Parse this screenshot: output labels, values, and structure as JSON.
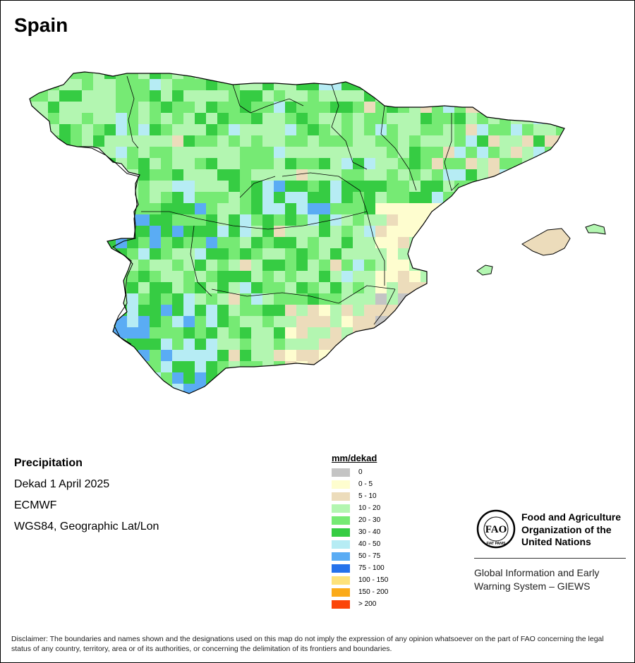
{
  "map": {
    "title": "Spain",
    "info": {
      "title": "Precipitation",
      "dekad": "Dekad 1 April 2025",
      "model": "ECMWF",
      "projection": "WGS84, Geographic Lat/Lon"
    }
  },
  "legend": {
    "title": "mm/dekad",
    "items": [
      {
        "label": "0",
        "color": "#c4c4c4"
      },
      {
        "label": "0 - 5",
        "color": "#fefdcf"
      },
      {
        "label": "5 - 10",
        "color": "#ecdcbb"
      },
      {
        "label": "10 - 20",
        "color": "#b3f6b1"
      },
      {
        "label": "20 - 30",
        "color": "#76ea74"
      },
      {
        "label": "30 - 40",
        "color": "#36cc43"
      },
      {
        "label": "40 - 50",
        "color": "#b6ecf4"
      },
      {
        "label": "50 - 75",
        "color": "#5aacf4"
      },
      {
        "label": "75 - 100",
        "color": "#2572eb"
      },
      {
        "label": "100 - 150",
        "color": "#fde27a"
      },
      {
        "label": "150 - 200",
        "color": "#fbab1a"
      },
      {
        "label": "> 200",
        "color": "#fb4509"
      }
    ]
  },
  "organization": {
    "name_lines": [
      "Food and Agriculture",
      "Organization of the",
      "United Nations"
    ],
    "logo_text": "FAO",
    "logo_motto": "FIAT PANIS",
    "system_lines": [
      "Global Information and Early",
      "Warning System – GIEWS"
    ]
  },
  "disclaimer": "Disclaimer: The boundaries and names shown and the designations used on this map do not imply the expression of any opinion whatsoever on the part of FAO concerning the legal status of any country, territory, area or of its authorities, or concerning the delimitation of its frontiers and boundaries."
}
